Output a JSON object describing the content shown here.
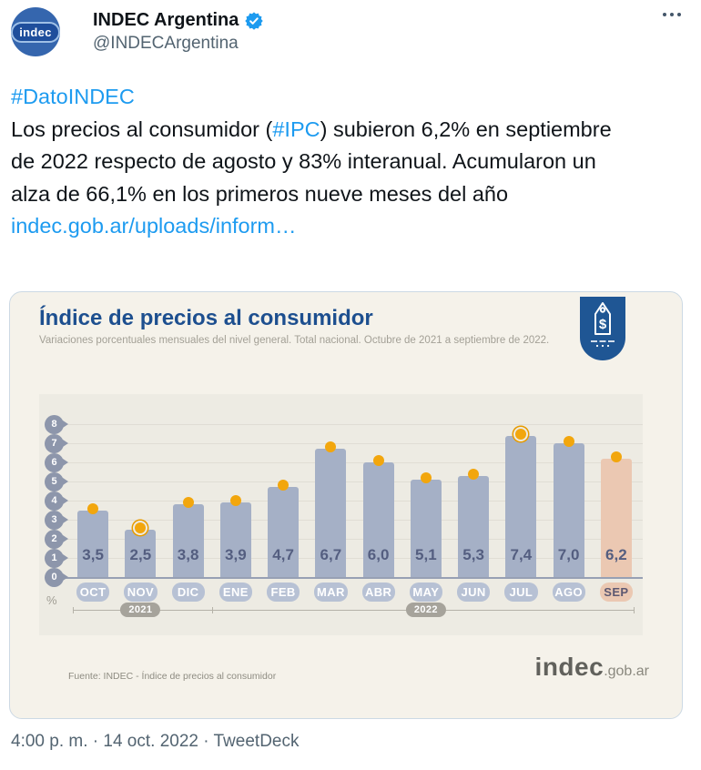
{
  "tweet": {
    "author": {
      "name": "INDEC Argentina",
      "handle": "@INDECArgentina",
      "avatar_text": "indec"
    },
    "body": {
      "hashtag_line": "#DatoINDEC",
      "text_before_tag": "Los precios al consumidor (",
      "inline_hashtag": "#IPC",
      "text_after_tag": ") subieron 6,2% en septiembre de 2022 respecto de agosto y 83% interanual. Acumularon un alza de 66,1% en los primeros nueve meses del año",
      "link_text": "indec.gob.ar/uploads/inform…"
    },
    "timestamp": "4:00 p. m. · 14 oct. 2022 · TweetDeck"
  },
  "chart": {
    "title": "Índice de precios al consumidor",
    "subtitle": "Variaciones porcentuales mensuales del nivel general. Total nacional. Octubre de 2021 a septiembre de 2022.",
    "unit_label": "%",
    "source": "Fuente: INDEC - Índice de precios al consumidor",
    "logo_main": "indec",
    "logo_suffix": ".gob.ar",
    "years": [
      {
        "label": "2021",
        "month_index": 1
      },
      {
        "label": "2022",
        "month_index": 7
      }
    ]
  },
  "chart_data": {
    "type": "bar",
    "title": "Índice de precios al consumidor",
    "categories": [
      "OCT",
      "NOV",
      "DIC",
      "ENE",
      "FEB",
      "MAR",
      "ABR",
      "MAY",
      "JUN",
      "JUL",
      "AGO",
      "SEP"
    ],
    "values": [
      3.5,
      2.5,
      3.8,
      3.9,
      4.7,
      6.7,
      6.0,
      5.1,
      5.3,
      7.4,
      7.0,
      6.2
    ],
    "value_labels": [
      "3,5",
      "2,5",
      "3,8",
      "3,9",
      "4,7",
      "6,7",
      "6,0",
      "5,1",
      "5,3",
      "7,4",
      "7,0",
      "6,2"
    ],
    "y_ticks": [
      0,
      1,
      2,
      3,
      4,
      5,
      6,
      7,
      8
    ],
    "ylim": [
      0,
      8
    ],
    "ylabel": "%",
    "grid": true,
    "legend": "none",
    "highlight_index": 11,
    "ringed_indices": [
      1,
      9
    ]
  },
  "colors": {
    "link_blue": "#1d9bf0",
    "text_dark": "#0f1419",
    "text_gray": "#536471",
    "title_blue": "#1d4f8f",
    "emblem_blue": "#1f5694",
    "avatar_blue": "#1e4e9c",
    "card_bg": "#f5f2ea",
    "plot_bg": "#edebe3",
    "bar_blue_gray": "#a5b0c6",
    "bar_highlight_peach": "#ebc8b2",
    "dot_orange": "#f2a60d",
    "value_text": "#545e80",
    "month_pill": "#b7c1d4",
    "year_pill": "#a6a39b"
  }
}
